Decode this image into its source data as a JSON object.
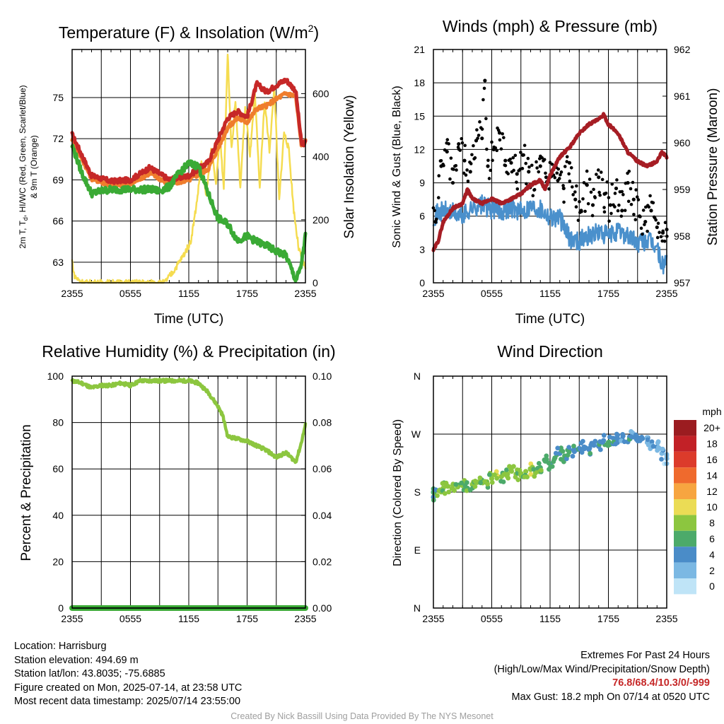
{
  "chart_data": [
    {
      "type": "line",
      "title": "Temperature (F) & Insolation (W/m²)",
      "xlabel": "Time (UTC)",
      "ylabel": "2m T, Td, HI/WC (Red, Green, Scarlet/Blue) & 9m T (Orange)",
      "ylabel_right": "Solar Insolation (Yellow)",
      "x_ticks": [
        "2355",
        "0555",
        "1155",
        "1755",
        "2355"
      ],
      "y_ticks": [
        63,
        66,
        69,
        72,
        75
      ],
      "ylim": [
        61.5,
        78.5
      ],
      "y2_ticks": [
        0,
        200,
        400,
        600
      ],
      "y2lim": [
        0,
        740
      ],
      "series": [
        {
          "color": "#c62828",
          "axis": "left",
          "t": [
            0,
            2,
            4,
            6,
            8,
            10,
            12,
            14,
            16,
            17,
            18,
            19,
            20,
            21,
            22,
            23,
            23.6,
            24
          ],
          "values": [
            72.3,
            69.3,
            68.9,
            69.0,
            69.9,
            69.0,
            69.3,
            70.3,
            73.5,
            74.0,
            73.6,
            76.0,
            75.4,
            75.9,
            76.3,
            75.5,
            71.6,
            71.7
          ]
        },
        {
          "color": "#ef7d2d",
          "axis": "left",
          "t": [
            0,
            2,
            4,
            6,
            8,
            10,
            12,
            14,
            16,
            17,
            18,
            19,
            20,
            21,
            22,
            23,
            23.6,
            24
          ],
          "values": [
            72.0,
            69.1,
            68.6,
            68.7,
            69.5,
            68.7,
            69.0,
            69.8,
            72.8,
            73.5,
            73.2,
            74.2,
            74.4,
            74.9,
            75.3,
            75.1,
            71.5,
            71.8
          ]
        },
        {
          "color": "#3aaa35",
          "axis": "left",
          "t": [
            0,
            1,
            2,
            3,
            4,
            6,
            8,
            9,
            10,
            11,
            12,
            13,
            14,
            15,
            16,
            17,
            18,
            19,
            20,
            21,
            22,
            23,
            23.5,
            24
          ],
          "values": [
            71.5,
            69.5,
            68.0,
            68.2,
            68.3,
            68.3,
            68.3,
            68.2,
            68.5,
            69.5,
            70.2,
            70.0,
            68.0,
            66.2,
            65.8,
            64.6,
            64.9,
            64.5,
            64.2,
            63.8,
            63.5,
            61.7,
            62.5,
            64.9
          ]
        },
        {
          "color": "#f5dc50",
          "axis": "right",
          "t": [
            0,
            0.2,
            0.6,
            1.2,
            3,
            6,
            8,
            9.5,
            10.5,
            11.5,
            12.2,
            12.8,
            13.3,
            13.8,
            14.3,
            14.8,
            15.2,
            15.6,
            16.0,
            16.4,
            16.8,
            17.3,
            17.8,
            18.3,
            18.8,
            19.3,
            19.8,
            20.3,
            20.8,
            21.3,
            21.8,
            22.3,
            22.8,
            23.3,
            23.7,
            24
          ],
          "values": [
            70,
            25,
            10,
            0,
            0,
            0,
            0,
            0,
            40,
            90,
            130,
            250,
            380,
            270,
            430,
            310,
            470,
            300,
            730,
            420,
            580,
            300,
            560,
            400,
            600,
            300,
            580,
            420,
            620,
            260,
            480,
            420,
            230,
            110,
            70,
            50
          ]
        }
      ]
    },
    {
      "type": "line",
      "title": "Winds (mph) & Pressure (mb)",
      "xlabel": "Time (UTC)",
      "ylabel": "Sonic Wind & Gust (Blue, Black)",
      "ylabel_right": "Station Pressure (Maroon)",
      "x_ticks": [
        "2355",
        "0555",
        "1155",
        "1755",
        "2355"
      ],
      "y_ticks": [
        0,
        3,
        6,
        9,
        12,
        15,
        18,
        21
      ],
      "ylim": [
        0,
        21
      ],
      "y2_ticks": [
        957,
        958,
        959,
        960,
        961,
        962
      ],
      "y2lim": [
        957,
        962
      ],
      "series": [
        {
          "color": "#4a90cc",
          "type": "line",
          "axis": "left",
          "t": [
            0,
            1,
            2,
            3,
            4,
            5,
            6,
            7,
            8,
            9,
            10,
            11,
            12,
            13,
            14,
            15,
            16,
            17,
            18,
            19,
            20,
            21,
            22,
            23,
            23.5,
            24
          ],
          "values": [
            6.0,
            6.5,
            6.3,
            6.0,
            6.8,
            7.0,
            6.6,
            6.5,
            6.8,
            6.4,
            6.9,
            6.7,
            6.0,
            5.8,
            4.0,
            3.8,
            4.3,
            4.5,
            4.2,
            4.6,
            4.3,
            3.5,
            3.8,
            3.2,
            1.5,
            2.0
          ]
        },
        {
          "color": "#000000",
          "type": "scatter",
          "axis": "left",
          "t": [
            0.2,
            0.8,
            1.4,
            2.0,
            2.6,
            3.2,
            3.8,
            4.4,
            5.0,
            5.3,
            5.6,
            6.2,
            6.8,
            7.4,
            8.0,
            8.6,
            9.2,
            9.8,
            10.4,
            11.0,
            11.6,
            12.2,
            12.8,
            13.4,
            14.0,
            14.6,
            15.2,
            15.8,
            16.4,
            17.0,
            17.6,
            18.2,
            18.8,
            19.4,
            20.0,
            20.6,
            21.2,
            21.8,
            22.4,
            23.0,
            23.6,
            24.0
          ],
          "values": [
            5.5,
            10.5,
            11.8,
            9.0,
            12.5,
            11.0,
            10.0,
            12.8,
            13.0,
            18.2,
            10.5,
            12.0,
            13.5,
            11.0,
            10.8,
            9.8,
            11.5,
            10.0,
            9.0,
            10.5,
            9.5,
            10.0,
            9.2,
            8.5,
            10.8,
            7.5,
            6.5,
            8.8,
            7.0,
            9.5,
            8.0,
            7.0,
            8.5,
            6.5,
            9.0,
            7.5,
            6.0,
            5.5,
            6.5,
            5.0,
            4.5,
            4.8
          ]
        },
        {
          "color": "#a61d24",
          "type": "line",
          "axis": "right",
          "t": [
            0,
            0.5,
            1,
            2,
            3,
            3.5,
            4,
            5,
            6,
            7,
            8,
            9,
            10,
            11,
            11.5,
            12,
            12.5,
            13,
            14,
            15,
            16,
            17,
            17.5,
            18,
            19,
            20,
            21,
            22,
            23,
            23.5,
            24
          ],
          "values": [
            957.7,
            957.9,
            958.3,
            958.6,
            958.7,
            959.0,
            958.8,
            958.7,
            958.8,
            958.7,
            958.8,
            958.9,
            959.1,
            959.2,
            959.0,
            959.3,
            959.5,
            959.7,
            959.9,
            960.2,
            960.4,
            960.5,
            960.6,
            960.4,
            960.2,
            959.8,
            959.6,
            959.5,
            959.6,
            959.8,
            959.7
          ]
        }
      ]
    },
    {
      "type": "line",
      "title": "Relative Humidity (%) & Precipitation (in)",
      "ylabel": "Percent & Precipitation",
      "x_ticks": [
        "2355",
        "0555",
        "1155",
        "1755",
        "2355"
      ],
      "y_ticks": [
        0,
        20,
        40,
        60,
        80,
        100
      ],
      "ylim": [
        0,
        100
      ],
      "y2_ticks": [
        "0.00",
        "0.02",
        "0.04",
        "0.06",
        "0.08",
        "0.10"
      ],
      "y2lim": [
        0,
        0.1
      ],
      "series": [
        {
          "color": "#8cc63f",
          "axis": "left",
          "t": [
            0,
            1,
            2,
            3,
            4,
            5,
            6,
            7,
            8,
            9,
            10,
            11,
            12,
            13,
            14,
            15,
            15.5,
            16,
            17,
            18,
            19,
            20,
            21,
            22,
            23,
            23.5,
            24
          ],
          "values": [
            98,
            97,
            95,
            96,
            96,
            97,
            96,
            98,
            98,
            98,
            98,
            98,
            98,
            97,
            93,
            87,
            83,
            74,
            73,
            72,
            70,
            68,
            65,
            67,
            63,
            70,
            79
          ]
        },
        {
          "color": "#3aaa35",
          "axis": "right",
          "t": [
            0,
            24
          ],
          "values": [
            0,
            0
          ]
        }
      ]
    },
    {
      "type": "scatter",
      "title": "Wind Direction",
      "ylabel": "Direction (Colored By Speed)",
      "x_ticks": [
        "2355",
        "0555",
        "1155",
        "1755",
        "2355"
      ],
      "y_ticks": [
        "N",
        "E",
        "S",
        "W",
        "N"
      ],
      "ylim": [
        0,
        360
      ],
      "colorbar": {
        "unit": "mph",
        "labels": [
          "20+",
          "18",
          "16",
          "14",
          "12",
          "10",
          "8",
          "6",
          "4",
          "2",
          "0"
        ],
        "colors": [
          "#9b1c20",
          "#c22127",
          "#dc3b2b",
          "#ef6a2d",
          "#f7a540",
          "#ebdc55",
          "#8cc63f",
          "#4caa6a",
          "#4a8cc8",
          "#7bb8e3",
          "#bfe4f7"
        ]
      },
      "points": {
        "t": [
          0,
          0.2,
          0.6,
          1.0,
          1.5,
          2.0,
          2.5,
          3.0,
          3.5,
          4.0,
          4.5,
          5.0,
          5.5,
          6.0,
          6.5,
          7.0,
          7.5,
          8.0,
          8.5,
          9.0,
          9.5,
          10.0,
          10.5,
          11.0,
          11.5,
          12.0,
          12.5,
          13.0,
          13.5,
          14.0,
          14.5,
          15.0,
          15.5,
          16.0,
          16.5,
          17.0,
          17.5,
          18.0,
          18.5,
          19.0,
          19.5,
          20.0,
          20.5,
          21.0,
          21.5,
          22.0,
          22.5,
          23.0,
          23.5,
          24.0
        ],
        "values": [
          180,
          175,
          182,
          186,
          189,
          185,
          188,
          190,
          186,
          192,
          195,
          198,
          196,
          201,
          206,
          204,
          210,
          213,
          208,
          209,
          212,
          215,
          210,
          218,
          228,
          224,
          233,
          240,
          236,
          245,
          243,
          248,
          250,
          246,
          256,
          251,
          260,
          257,
          255,
          262,
          267,
          258,
          270,
          265,
          263,
          257,
          253,
          250,
          240,
          232
        ],
        "speed": [
          4,
          5,
          7,
          7,
          8,
          7,
          6,
          7,
          6,
          7,
          8,
          7,
          7,
          7,
          8,
          7,
          7,
          8,
          7,
          7,
          7,
          8,
          7,
          6,
          6,
          4,
          5,
          4,
          5,
          4,
          4,
          4,
          4,
          4,
          3,
          4,
          4,
          5,
          4,
          3,
          3,
          4,
          2,
          3,
          4,
          2,
          2,
          3,
          2,
          1
        ]
      }
    }
  ],
  "info": {
    "location": "Location: Harrisburg",
    "elevation": "Station elevation: 494.69 m",
    "latlon": "Station lat/lon: 43.8035; -75.6885",
    "created": "Figure created on Mon, 2025-07-14, at 23:58 UTC",
    "recent": "Most recent data timestamp: 2025/07/14 23:55:00"
  },
  "extremes": {
    "title": "Extremes For Past 24 Hours",
    "subtitle": "(High/Low/Max Wind/Precipitation/Snow Depth)",
    "values": "76.8/68.4/10.3/0/-999",
    "gust": "Max Gust: 18.2 mph On 07/14 at 0520 UTC"
  },
  "credit": "Created By Nick Bassill Using Data Provided By The NYS Mesonet"
}
